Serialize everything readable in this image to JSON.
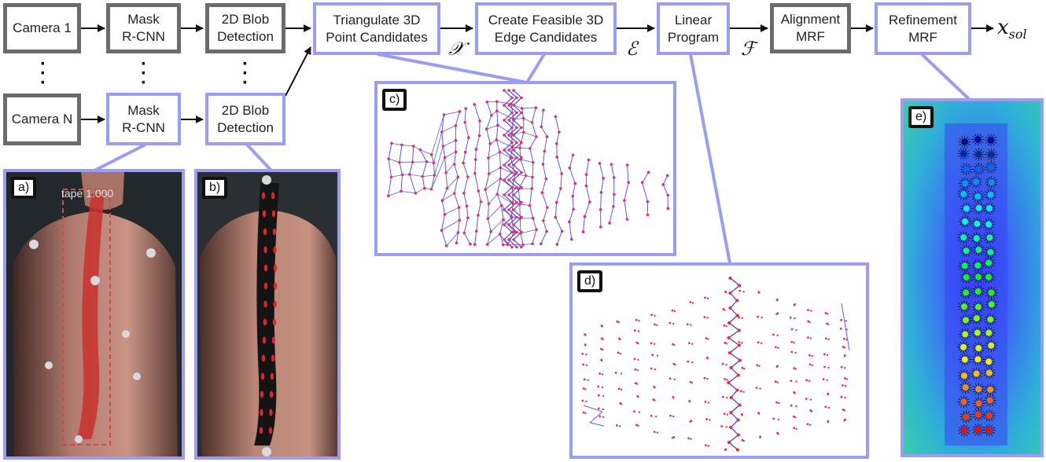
{
  "nodes": {
    "camera1": "Camera 1",
    "cameraN": "Camera N",
    "mask1": "Mask\nR-CNN",
    "maskN": "Mask\nR-CNN",
    "blob1": "2D Blob\nDetection",
    "blobN": "2D Blob\nDetection",
    "triangulate": "Triangulate 3D\nPoint Candidates",
    "edges": "Create Feasible 3D\nEdge Candidates",
    "lp": "Linear\nProgram",
    "alignment": "Alignment\nMRF",
    "refinement": "Refinement\nMRF"
  },
  "symbols": {
    "x_set": "𝒳",
    "e_set": "ℰ",
    "f_set": "ℱ",
    "x_sol": "x",
    "x_sol_sub": "sol"
  },
  "panels": {
    "a": {
      "tag": "a)",
      "caption": "tape 1.000"
    },
    "b": {
      "tag": "b)"
    },
    "c": {
      "tag": "c)"
    },
    "d": {
      "tag": "d)"
    },
    "e": {
      "tag": "e)"
    }
  },
  "colors": {
    "gray_border": "#6b6b6b",
    "blue_border": "#9c9cf5",
    "edge_line": "#5a5af0",
    "point": "#e0306a"
  }
}
